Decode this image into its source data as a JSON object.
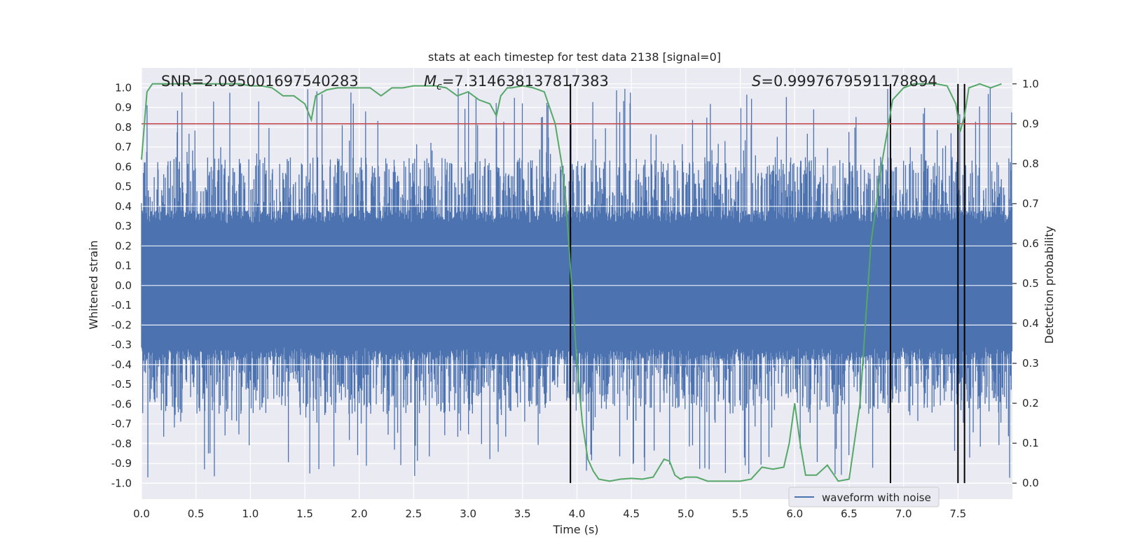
{
  "chart_data": {
    "type": "line",
    "title": "stats at each timestep for test data 2138 [signal=0]",
    "xlabel": "Time (s)",
    "ylabel_left": "Whitened strain",
    "ylabel_right": "Detection probability",
    "xlim": [
      0.0,
      8.0
    ],
    "ylim_left": [
      -1.08,
      1.1
    ],
    "ylim_right": [
      -0.04,
      1.04
    ],
    "x_ticks": [
      0.0,
      0.5,
      1.0,
      1.5,
      2.0,
      2.5,
      3.0,
      3.5,
      4.0,
      4.5,
      5.0,
      5.5,
      6.0,
      6.5,
      7.0,
      7.5
    ],
    "x_tick_labels": [
      "0.0",
      "0.5",
      "1.0",
      "1.5",
      "2.0",
      "2.5",
      "3.0",
      "3.5",
      "4.0",
      "4.5",
      "5.0",
      "5.5",
      "6.0",
      "6.5",
      "7.0",
      "7.5"
    ],
    "y_left_ticks": [
      1.0,
      0.9,
      0.8,
      0.7,
      0.6,
      0.5,
      0.4,
      0.3,
      0.2,
      0.1,
      0.0,
      -0.1,
      -0.2,
      -0.3,
      -0.4,
      -0.5,
      -0.6,
      -0.7,
      -0.8,
      -0.9,
      -1.0
    ],
    "y_left_tick_labels": [
      "1.0",
      "0.9",
      "0.8",
      "0.7",
      "0.6",
      "0.5",
      "0.4",
      "0.3",
      "0.2",
      "0.1",
      "0.0",
      "-0.1",
      "-0.2",
      "-0.3",
      "-0.4",
      "-0.5",
      "-0.6",
      "-0.7",
      "-0.8",
      "-0.9",
      "-1.0"
    ],
    "y_right_ticks": [
      1.0,
      0.9,
      0.8,
      0.7,
      0.6,
      0.5,
      0.4,
      0.3,
      0.2,
      0.1,
      0.0
    ],
    "y_right_tick_labels": [
      "1.0",
      "0.9",
      "0.8",
      "0.7",
      "0.6",
      "0.5",
      "0.4",
      "0.3",
      "0.2",
      "0.1",
      "0.0"
    ],
    "annotations": {
      "snr": "SNR=2.095001697540283",
      "mc_symbol": "M",
      "mc_subscript": "c",
      "mc_value": "=7.314638137817383",
      "s_symbol": "S",
      "s_value": "=0.9997679591178894"
    },
    "legend": {
      "position": "lower-right",
      "entries": [
        "waveform with noise"
      ]
    },
    "threshold": {
      "axis": "right",
      "value": 0.9,
      "color": "#c44e52"
    },
    "event_markers_x": [
      3.94,
      6.88,
      7.5,
      7.56
    ],
    "waveform": {
      "name": "waveform with noise",
      "color": "#4c72b0",
      "x_range": [
        0.0,
        8.0
      ],
      "samples": 2200,
      "core_amplitude": 0.38,
      "spike_range": [
        0.45,
        1.0
      ]
    },
    "detection_probability": {
      "color": "#55a868",
      "x": [
        0.0,
        0.05,
        0.1,
        0.15,
        0.2,
        0.3,
        0.4,
        0.5,
        0.6,
        0.7,
        0.8,
        0.9,
        1.0,
        1.1,
        1.2,
        1.3,
        1.4,
        1.5,
        1.56,
        1.6,
        1.7,
        1.8,
        1.9,
        2.0,
        2.1,
        2.2,
        2.3,
        2.4,
        2.5,
        2.6,
        2.7,
        2.8,
        2.9,
        3.0,
        3.1,
        3.2,
        3.26,
        3.3,
        3.36,
        3.4,
        3.5,
        3.6,
        3.7,
        3.8,
        3.86,
        3.9,
        3.95,
        4.0,
        4.05,
        4.1,
        4.15,
        4.2,
        4.3,
        4.4,
        4.5,
        4.6,
        4.7,
        4.8,
        4.85,
        4.9,
        4.95,
        5.0,
        5.05,
        5.1,
        5.2,
        5.3,
        5.4,
        5.5,
        5.6,
        5.7,
        5.8,
        5.9,
        5.95,
        6.0,
        6.05,
        6.1,
        6.2,
        6.3,
        6.4,
        6.5,
        6.6,
        6.7,
        6.8,
        6.9,
        7.0,
        7.1,
        7.2,
        7.3,
        7.4,
        7.48,
        7.52,
        7.56,
        7.6,
        7.7,
        7.8,
        7.9
      ],
      "values": [
        0.81,
        0.98,
        1.0,
        1.0,
        1.0,
        1.0,
        1.0,
        1.0,
        1.0,
        1.0,
        1.0,
        1.0,
        0.995,
        0.995,
        0.99,
        0.97,
        0.97,
        0.95,
        0.91,
        0.97,
        0.985,
        0.99,
        0.99,
        0.99,
        0.99,
        0.97,
        0.99,
        0.99,
        0.995,
        0.995,
        0.995,
        0.99,
        0.97,
        0.98,
        0.96,
        0.95,
        0.92,
        0.97,
        0.99,
        0.99,
        0.995,
        0.99,
        0.98,
        0.9,
        0.8,
        0.7,
        0.5,
        0.3,
        0.15,
        0.06,
        0.03,
        0.01,
        0.005,
        0.01,
        0.012,
        0.01,
        0.015,
        0.06,
        0.055,
        0.02,
        0.01,
        0.015,
        0.015,
        0.015,
        0.005,
        0.005,
        0.005,
        0.005,
        0.01,
        0.04,
        0.035,
        0.04,
        0.1,
        0.2,
        0.1,
        0.02,
        0.02,
        0.045,
        0.005,
        0.01,
        0.2,
        0.6,
        0.8,
        0.96,
        0.99,
        1.0,
        1.0,
        1.0,
        0.995,
        0.95,
        0.88,
        0.92,
        0.99,
        1.0,
        0.99,
        1.0
      ]
    }
  }
}
